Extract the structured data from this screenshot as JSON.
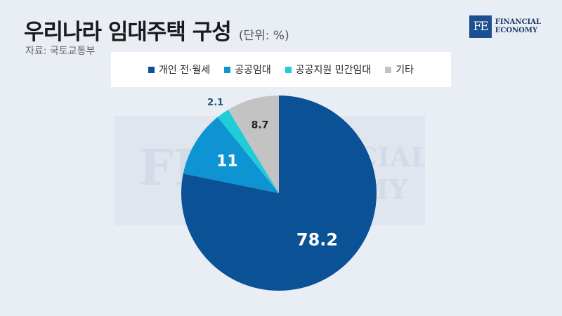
{
  "header": {
    "title": "우리나라 임대주택 구성",
    "unit": "(단위: %)",
    "source": "자료: 국토교통부"
  },
  "logo": {
    "mark": "FE",
    "line1": "FINANCIAL",
    "line2": "ECONOMY"
  },
  "colors": {
    "accent": "#0b5196",
    "background": "#e9eef5"
  },
  "chart_data": {
    "type": "pie",
    "categories": [
      "개인 전·월세",
      "공공임대",
      "공공지원 민간임대",
      "기타"
    ],
    "values": [
      78.2,
      11,
      2.1,
      8.7
    ],
    "labels": [
      "78.2",
      "11",
      "2.1",
      "8.7"
    ],
    "colors": [
      "#0b5196",
      "#0e93d3",
      "#20ccd8",
      "#c3c3c3"
    ],
    "legend_position": "top"
  }
}
